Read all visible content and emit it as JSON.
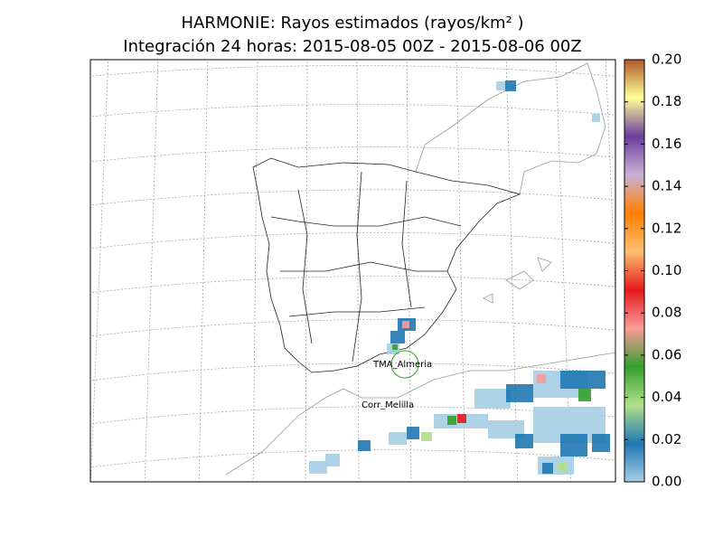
{
  "chart_data": {
    "type": "map",
    "title": "HARMONIE: Rayos estimados (rayos/km² )",
    "subtitle": "Integración 24 horas: 2015-08-05 00Z - 2015-08-06 00Z",
    "annotations": [
      "TMA_Almeria",
      "Corr_Melilla"
    ],
    "clim": [
      0,
      0.2
    ],
    "cticks": [
      {
        "value": 0,
        "label": "0.00"
      },
      {
        "value": 0.02,
        "label": "0.02"
      },
      {
        "value": 0.04,
        "label": "0.04"
      },
      {
        "value": 0.06,
        "label": "0.06"
      },
      {
        "value": 0.08,
        "label": "0.08"
      },
      {
        "value": 0.1,
        "label": "0.10"
      },
      {
        "value": 0.12,
        "label": "0.12"
      },
      {
        "value": 0.14,
        "label": "0.14"
      },
      {
        "value": 0.16,
        "label": "0.16"
      },
      {
        "value": 0.18,
        "label": "0.18"
      },
      {
        "value": 0.2,
        "label": "0.20"
      }
    ],
    "colormap": [
      "#a6cee3",
      "#1f78b4",
      "#b2df8a",
      "#33a02c",
      "#fb9a99",
      "#e31a1c",
      "#fdbf6f",
      "#ff7f00",
      "#cab2d6",
      "#6a3d9a",
      "#ffff99",
      "#b15928"
    ]
  }
}
